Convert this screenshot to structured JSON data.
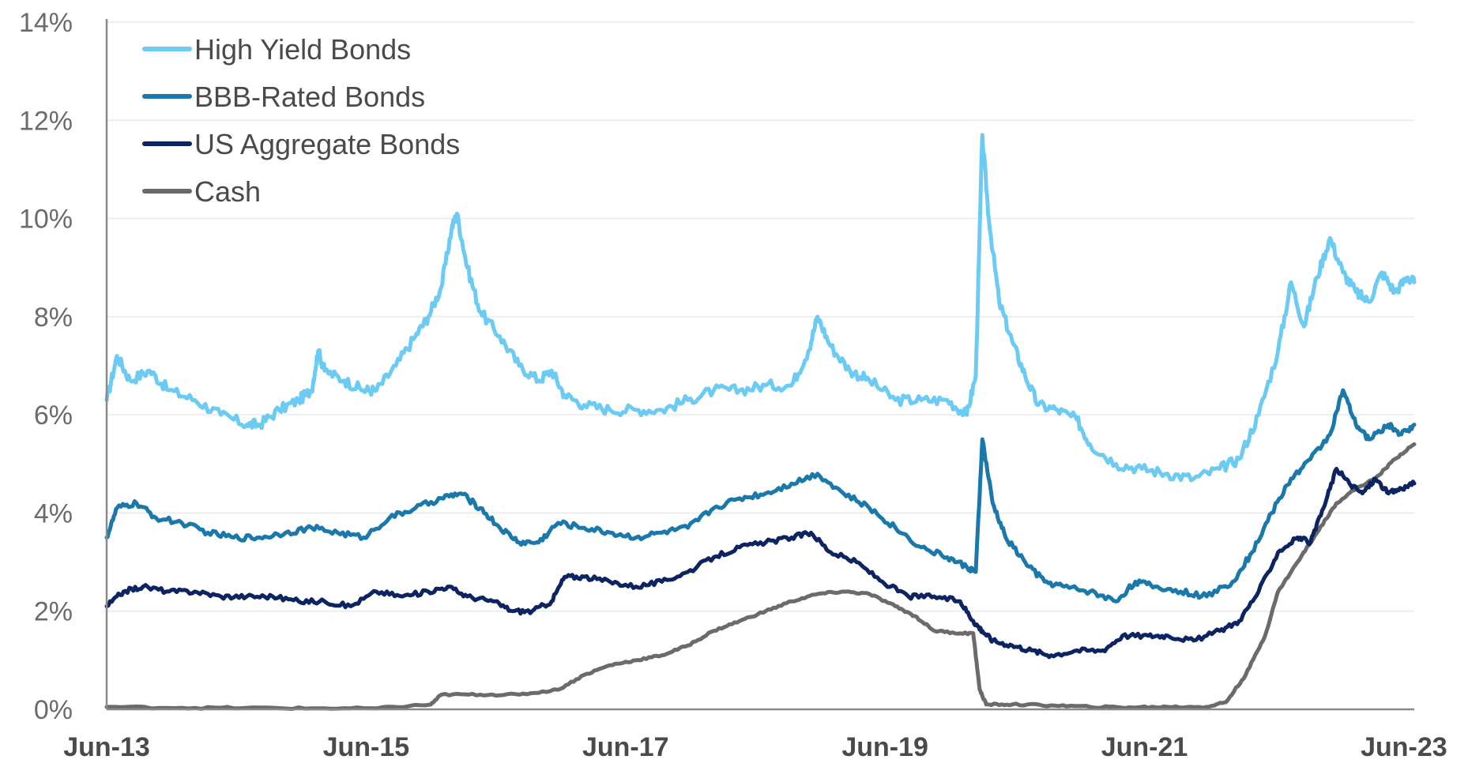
{
  "chart_data": {
    "type": "line",
    "title": "",
    "xlabel": "",
    "ylabel": "",
    "ylim": [
      0,
      14
    ],
    "yticks": [
      "0%",
      "2%",
      "4%",
      "6%",
      "8%",
      "10%",
      "12%",
      "14%"
    ],
    "ytick_values": [
      0,
      2,
      4,
      6,
      8,
      10,
      12,
      14
    ],
    "xlim": [
      2013.42,
      2023.5
    ],
    "xticks": [
      "Jun-13",
      "Jun-15",
      "Jun-17",
      "Jun-19",
      "Jun-21",
      "Jun-23"
    ],
    "xtick_values": [
      2013.42,
      2015.42,
      2017.42,
      2019.42,
      2021.42,
      2023.42
    ],
    "grid": true,
    "legend_position": "top-left",
    "series": [
      {
        "name": "High Yield Bonds",
        "color": "#6ccbf2",
        "points": [
          [
            2013.42,
            6.3
          ],
          [
            2013.5,
            7.2
          ],
          [
            2013.6,
            6.7
          ],
          [
            2013.75,
            6.9
          ],
          [
            2013.9,
            6.5
          ],
          [
            2014.1,
            6.3
          ],
          [
            2014.3,
            6.0
          ],
          [
            2014.5,
            5.8
          ],
          [
            2014.6,
            5.8
          ],
          [
            2014.75,
            6.1
          ],
          [
            2014.9,
            6.3
          ],
          [
            2015.0,
            6.5
          ],
          [
            2015.05,
            7.3
          ],
          [
            2015.1,
            6.9
          ],
          [
            2015.25,
            6.7
          ],
          [
            2015.4,
            6.5
          ],
          [
            2015.5,
            6.5
          ],
          [
            2015.65,
            7.0
          ],
          [
            2015.8,
            7.6
          ],
          [
            2015.9,
            8.0
          ],
          [
            2016.0,
            8.6
          ],
          [
            2016.08,
            9.8
          ],
          [
            2016.12,
            10.1
          ],
          [
            2016.2,
            9.0
          ],
          [
            2016.3,
            8.1
          ],
          [
            2016.45,
            7.6
          ],
          [
            2016.6,
            7.0
          ],
          [
            2016.75,
            6.7
          ],
          [
            2016.85,
            6.9
          ],
          [
            2016.95,
            6.4
          ],
          [
            2017.1,
            6.2
          ],
          [
            2017.3,
            6.1
          ],
          [
            2017.5,
            6.1
          ],
          [
            2017.7,
            6.1
          ],
          [
            2017.9,
            6.3
          ],
          [
            2018.1,
            6.5
          ],
          [
            2018.3,
            6.5
          ],
          [
            2018.5,
            6.6
          ],
          [
            2018.7,
            6.6
          ],
          [
            2018.83,
            7.3
          ],
          [
            2018.9,
            8.0
          ],
          [
            2019.0,
            7.4
          ],
          [
            2019.15,
            6.9
          ],
          [
            2019.3,
            6.7
          ],
          [
            2019.5,
            6.3
          ],
          [
            2019.7,
            6.3
          ],
          [
            2019.9,
            6.3
          ],
          [
            2020.05,
            6.0
          ],
          [
            2020.12,
            6.8
          ],
          [
            2020.17,
            11.7
          ],
          [
            2020.22,
            10.0
          ],
          [
            2020.3,
            8.3
          ],
          [
            2020.4,
            7.5
          ],
          [
            2020.5,
            6.8
          ],
          [
            2020.6,
            6.2
          ],
          [
            2020.75,
            6.1
          ],
          [
            2020.9,
            5.9
          ],
          [
            2021.0,
            5.4
          ],
          [
            2021.2,
            5.0
          ],
          [
            2021.4,
            4.9
          ],
          [
            2021.6,
            4.8
          ],
          [
            2021.8,
            4.7
          ],
          [
            2022.0,
            4.9
          ],
          [
            2022.15,
            5.1
          ],
          [
            2022.3,
            6.0
          ],
          [
            2022.45,
            7.3
          ],
          [
            2022.55,
            8.7
          ],
          [
            2022.65,
            7.8
          ],
          [
            2022.75,
            8.8
          ],
          [
            2022.85,
            9.6
          ],
          [
            2022.95,
            8.9
          ],
          [
            2023.05,
            8.5
          ],
          [
            2023.15,
            8.3
          ],
          [
            2023.25,
            8.9
          ],
          [
            2023.35,
            8.5
          ],
          [
            2023.45,
            8.8
          ],
          [
            2023.5,
            8.7
          ]
        ]
      },
      {
        "name": "BBB-Rated Bonds",
        "color": "#1a78aa",
        "points": [
          [
            2013.42,
            3.5
          ],
          [
            2013.5,
            4.1
          ],
          [
            2013.65,
            4.2
          ],
          [
            2013.8,
            3.9
          ],
          [
            2014.0,
            3.8
          ],
          [
            2014.2,
            3.6
          ],
          [
            2014.4,
            3.5
          ],
          [
            2014.6,
            3.5
          ],
          [
            2014.8,
            3.6
          ],
          [
            2015.0,
            3.7
          ],
          [
            2015.2,
            3.6
          ],
          [
            2015.4,
            3.5
          ],
          [
            2015.6,
            3.9
          ],
          [
            2015.8,
            4.1
          ],
          [
            2016.0,
            4.3
          ],
          [
            2016.15,
            4.4
          ],
          [
            2016.3,
            4.1
          ],
          [
            2016.45,
            3.7
          ],
          [
            2016.6,
            3.4
          ],
          [
            2016.75,
            3.4
          ],
          [
            2016.9,
            3.8
          ],
          [
            2017.1,
            3.7
          ],
          [
            2017.3,
            3.6
          ],
          [
            2017.5,
            3.5
          ],
          [
            2017.7,
            3.6
          ],
          [
            2017.9,
            3.7
          ],
          [
            2018.1,
            4.1
          ],
          [
            2018.3,
            4.3
          ],
          [
            2018.5,
            4.4
          ],
          [
            2018.7,
            4.6
          ],
          [
            2018.9,
            4.8
          ],
          [
            2019.1,
            4.4
          ],
          [
            2019.3,
            4.1
          ],
          [
            2019.5,
            3.7
          ],
          [
            2019.7,
            3.3
          ],
          [
            2019.9,
            3.1
          ],
          [
            2020.05,
            2.9
          ],
          [
            2020.12,
            2.8
          ],
          [
            2020.17,
            5.5
          ],
          [
            2020.25,
            4.2
          ],
          [
            2020.35,
            3.5
          ],
          [
            2020.5,
            3.0
          ],
          [
            2020.65,
            2.6
          ],
          [
            2020.8,
            2.5
          ],
          [
            2021.0,
            2.4
          ],
          [
            2021.2,
            2.2
          ],
          [
            2021.35,
            2.6
          ],
          [
            2021.5,
            2.5
          ],
          [
            2021.7,
            2.4
          ],
          [
            2021.9,
            2.3
          ],
          [
            2022.1,
            2.6
          ],
          [
            2022.25,
            3.2
          ],
          [
            2022.4,
            4.0
          ],
          [
            2022.55,
            4.7
          ],
          [
            2022.7,
            5.1
          ],
          [
            2022.85,
            5.6
          ],
          [
            2022.95,
            6.5
          ],
          [
            2023.05,
            5.8
          ],
          [
            2023.15,
            5.5
          ],
          [
            2023.3,
            5.8
          ],
          [
            2023.4,
            5.6
          ],
          [
            2023.5,
            5.8
          ]
        ]
      },
      {
        "name": "US Aggregate Bonds",
        "color": "#0d2462",
        "points": [
          [
            2013.42,
            2.1
          ],
          [
            2013.55,
            2.4
          ],
          [
            2013.7,
            2.5
          ],
          [
            2013.9,
            2.4
          ],
          [
            2014.1,
            2.4
          ],
          [
            2014.3,
            2.3
          ],
          [
            2014.5,
            2.3
          ],
          [
            2014.7,
            2.3
          ],
          [
            2014.9,
            2.2
          ],
          [
            2015.1,
            2.2
          ],
          [
            2015.3,
            2.1
          ],
          [
            2015.5,
            2.4
          ],
          [
            2015.7,
            2.3
          ],
          [
            2015.9,
            2.4
          ],
          [
            2016.05,
            2.5
          ],
          [
            2016.2,
            2.3
          ],
          [
            2016.4,
            2.2
          ],
          [
            2016.55,
            2.0
          ],
          [
            2016.7,
            2.0
          ],
          [
            2016.85,
            2.2
          ],
          [
            2016.95,
            2.7
          ],
          [
            2017.1,
            2.7
          ],
          [
            2017.3,
            2.6
          ],
          [
            2017.5,
            2.5
          ],
          [
            2017.7,
            2.6
          ],
          [
            2017.9,
            2.8
          ],
          [
            2018.1,
            3.1
          ],
          [
            2018.3,
            3.3
          ],
          [
            2018.5,
            3.4
          ],
          [
            2018.7,
            3.5
          ],
          [
            2018.85,
            3.6
          ],
          [
            2019.0,
            3.2
          ],
          [
            2019.2,
            3.0
          ],
          [
            2019.4,
            2.6
          ],
          [
            2019.6,
            2.3
          ],
          [
            2019.8,
            2.3
          ],
          [
            2020.0,
            2.2
          ],
          [
            2020.1,
            1.8
          ],
          [
            2020.17,
            1.6
          ],
          [
            2020.25,
            1.4
          ],
          [
            2020.4,
            1.3
          ],
          [
            2020.55,
            1.2
          ],
          [
            2020.7,
            1.1
          ],
          [
            2020.9,
            1.2
          ],
          [
            2021.1,
            1.2
          ],
          [
            2021.25,
            1.5
          ],
          [
            2021.45,
            1.5
          ],
          [
            2021.6,
            1.5
          ],
          [
            2021.8,
            1.4
          ],
          [
            2022.0,
            1.6
          ],
          [
            2022.15,
            1.8
          ],
          [
            2022.3,
            2.4
          ],
          [
            2022.45,
            3.2
          ],
          [
            2022.6,
            3.5
          ],
          [
            2022.7,
            3.4
          ],
          [
            2022.8,
            4.1
          ],
          [
            2022.9,
            4.9
          ],
          [
            2023.0,
            4.6
          ],
          [
            2023.1,
            4.4
          ],
          [
            2023.2,
            4.7
          ],
          [
            2023.3,
            4.4
          ],
          [
            2023.4,
            4.5
          ],
          [
            2023.5,
            4.6
          ]
        ]
      },
      {
        "name": "Cash",
        "color": "#6b6b6b",
        "points": [
          [
            2013.42,
            0.05
          ],
          [
            2014.0,
            0.03
          ],
          [
            2014.5,
            0.03
          ],
          [
            2015.0,
            0.02
          ],
          [
            2015.5,
            0.02
          ],
          [
            2015.92,
            0.1
          ],
          [
            2016.0,
            0.3
          ],
          [
            2016.3,
            0.3
          ],
          [
            2016.6,
            0.3
          ],
          [
            2016.9,
            0.4
          ],
          [
            2017.1,
            0.7
          ],
          [
            2017.3,
            0.9
          ],
          [
            2017.5,
            1.0
          ],
          [
            2017.7,
            1.1
          ],
          [
            2017.9,
            1.3
          ],
          [
            2018.1,
            1.6
          ],
          [
            2018.3,
            1.8
          ],
          [
            2018.5,
            2.0
          ],
          [
            2018.7,
            2.2
          ],
          [
            2018.9,
            2.35
          ],
          [
            2019.1,
            2.4
          ],
          [
            2019.3,
            2.35
          ],
          [
            2019.5,
            2.1
          ],
          [
            2019.65,
            1.9
          ],
          [
            2019.8,
            1.6
          ],
          [
            2020.0,
            1.55
          ],
          [
            2020.1,
            1.55
          ],
          [
            2020.15,
            0.4
          ],
          [
            2020.2,
            0.1
          ],
          [
            2020.4,
            0.1
          ],
          [
            2020.7,
            0.08
          ],
          [
            2021.0,
            0.05
          ],
          [
            2021.3,
            0.04
          ],
          [
            2021.6,
            0.05
          ],
          [
            2021.9,
            0.05
          ],
          [
            2022.05,
            0.15
          ],
          [
            2022.2,
            0.7
          ],
          [
            2022.35,
            1.5
          ],
          [
            2022.45,
            2.4
          ],
          [
            2022.6,
            3.0
          ],
          [
            2022.75,
            3.6
          ],
          [
            2022.9,
            4.2
          ],
          [
            2023.05,
            4.5
          ],
          [
            2023.2,
            4.7
          ],
          [
            2023.35,
            5.1
          ],
          [
            2023.5,
            5.4
          ]
        ]
      }
    ]
  }
}
